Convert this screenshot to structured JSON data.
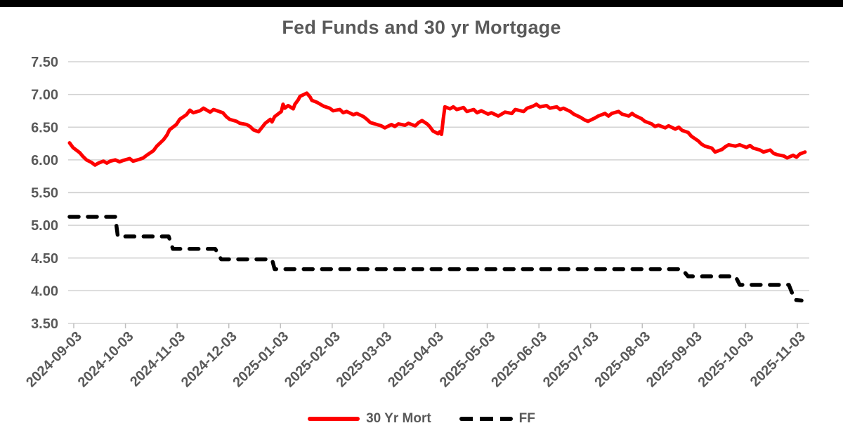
{
  "page": {
    "top_bar_color": "#000000",
    "background_color": "#ffffff"
  },
  "chart": {
    "title": "Fed Funds and 30 yr Mortgage",
    "colors": {
      "mortgage_line": "#fe0000",
      "ff_line": "#000000",
      "gridline": "#d2d2d2",
      "tick_mark": "#bfbfbf",
      "axis_text": "#595959"
    },
    "legend": [
      {
        "label": "30 Yr Mort",
        "style": "solid",
        "color": "#fe0000"
      },
      {
        "label": "FF",
        "style": "dashed",
        "color": "#000000"
      }
    ]
  },
  "chart_data": {
    "type": "line",
    "title": "Fed Funds and 30 yr Mortgage",
    "grid": "horizontal",
    "legend_position": "bottom",
    "ylim": [
      3.5,
      7.5
    ],
    "y_tick_labels": [
      "7.50",
      "7.00",
      "6.50",
      "6.00",
      "5.50",
      "5.00",
      "4.50",
      "4.00",
      "3.50"
    ],
    "x_tick_labels": [
      "2024-09-03",
      "2024-10-03",
      "2024-11-03",
      "2024-12-03",
      "2025-01-03",
      "2025-02-03",
      "2025-03-03",
      "2025-04-03",
      "2025-05-03",
      "2025-06-03",
      "2025-07-03",
      "2025-08-03",
      "2025-09-03",
      "2025-10-03",
      "2025-11-03"
    ],
    "series": [
      {
        "name": "30 Yr Mort",
        "style": "solid",
        "color": "#fe0000",
        "points": [
          [
            "2024-09-03",
            6.26
          ],
          [
            "2024-09-05",
            6.19
          ],
          [
            "2024-09-09",
            6.11
          ],
          [
            "2024-09-11",
            6.05
          ],
          [
            "2024-09-13",
            6.0
          ],
          [
            "2024-09-16",
            5.96
          ],
          [
            "2024-09-18",
            5.92
          ],
          [
            "2024-09-20",
            5.95
          ],
          [
            "2024-09-23",
            5.98
          ],
          [
            "2024-09-25",
            5.95
          ],
          [
            "2024-09-27",
            5.98
          ],
          [
            "2024-09-30",
            6.0
          ],
          [
            "2024-10-02",
            5.97
          ],
          [
            "2024-10-04",
            5.99
          ],
          [
            "2024-10-08",
            6.02
          ],
          [
            "2024-10-10",
            5.98
          ],
          [
            "2024-10-14",
            6.01
          ],
          [
            "2024-10-16",
            6.03
          ],
          [
            "2024-10-18",
            6.07
          ],
          [
            "2024-10-22",
            6.14
          ],
          [
            "2024-10-24",
            6.21
          ],
          [
            "2024-10-28",
            6.31
          ],
          [
            "2024-10-30",
            6.38
          ],
          [
            "2024-11-01",
            6.46
          ],
          [
            "2024-11-05",
            6.54
          ],
          [
            "2024-11-07",
            6.62
          ],
          [
            "2024-11-11",
            6.69
          ],
          [
            "2024-11-13",
            6.76
          ],
          [
            "2024-11-15",
            6.72
          ],
          [
            "2024-11-19",
            6.75
          ],
          [
            "2024-11-21",
            6.79
          ],
          [
            "2024-11-25",
            6.73
          ],
          [
            "2024-11-27",
            6.77
          ],
          [
            "2024-12-02",
            6.72
          ],
          [
            "2024-12-04",
            6.66
          ],
          [
            "2024-12-06",
            6.62
          ],
          [
            "2024-12-10",
            6.59
          ],
          [
            "2024-12-12",
            6.56
          ],
          [
            "2024-12-16",
            6.54
          ],
          [
            "2024-12-18",
            6.51
          ],
          [
            "2024-12-20",
            6.46
          ],
          [
            "2024-12-23",
            6.43
          ],
          [
            "2024-12-27",
            6.56
          ],
          [
            "2024-12-30",
            6.62
          ],
          [
            "2024-12-31",
            6.58
          ],
          [
            "2025-01-02",
            6.66
          ],
          [
            "2025-01-06",
            6.74
          ],
          [
            "2025-01-07",
            6.85
          ],
          [
            "2025-01-08",
            6.79
          ],
          [
            "2025-01-10",
            6.83
          ],
          [
            "2025-01-13",
            6.78
          ],
          [
            "2025-01-14",
            6.85
          ],
          [
            "2025-01-16",
            6.92
          ],
          [
            "2025-01-17",
            6.97
          ],
          [
            "2025-01-21",
            7.02
          ],
          [
            "2025-01-23",
            6.96
          ],
          [
            "2025-01-24",
            6.91
          ],
          [
            "2025-01-27",
            6.88
          ],
          [
            "2025-01-29",
            6.85
          ],
          [
            "2025-01-31",
            6.82
          ],
          [
            "2025-02-04",
            6.79
          ],
          [
            "2025-02-06",
            6.75
          ],
          [
            "2025-02-10",
            6.77
          ],
          [
            "2025-02-12",
            6.72
          ],
          [
            "2025-02-14",
            6.74
          ],
          [
            "2025-02-18",
            6.69
          ],
          [
            "2025-02-20",
            6.71
          ],
          [
            "2025-02-24",
            6.66
          ],
          [
            "2025-02-26",
            6.62
          ],
          [
            "2025-02-28",
            6.57
          ],
          [
            "2025-03-04",
            6.52
          ],
          [
            "2025-03-06",
            6.49
          ],
          [
            "2025-03-10",
            6.54
          ],
          [
            "2025-03-12",
            6.51
          ],
          [
            "2025-03-14",
            6.55
          ],
          [
            "2025-03-18",
            6.53
          ],
          [
            "2025-03-20",
            6.56
          ],
          [
            "2025-03-24",
            6.52
          ],
          [
            "2025-03-26",
            6.57
          ],
          [
            "2025-03-28",
            6.6
          ],
          [
            "2025-03-31",
            6.55
          ],
          [
            "2025-04-02",
            6.51
          ],
          [
            "2025-04-04",
            6.44
          ],
          [
            "2025-04-07",
            6.4
          ],
          [
            "2025-04-08",
            6.43
          ],
          [
            "2025-04-09",
            6.39
          ],
          [
            "2025-04-10",
            6.62
          ],
          [
            "2025-04-11",
            6.81
          ],
          [
            "2025-04-14",
            6.78
          ],
          [
            "2025-04-16",
            6.81
          ],
          [
            "2025-04-18",
            6.77
          ],
          [
            "2025-04-22",
            6.8
          ],
          [
            "2025-04-24",
            6.74
          ],
          [
            "2025-04-28",
            6.77
          ],
          [
            "2025-04-30",
            6.72
          ],
          [
            "2025-05-02",
            6.75
          ],
          [
            "2025-05-06",
            6.7
          ],
          [
            "2025-05-08",
            6.72
          ],
          [
            "2025-05-12",
            6.67
          ],
          [
            "2025-05-14",
            6.7
          ],
          [
            "2025-05-16",
            6.73
          ],
          [
            "2025-05-20",
            6.71
          ],
          [
            "2025-05-22",
            6.77
          ],
          [
            "2025-05-27",
            6.74
          ],
          [
            "2025-05-29",
            6.79
          ],
          [
            "2025-06-02",
            6.82
          ],
          [
            "2025-06-04",
            6.85
          ],
          [
            "2025-06-06",
            6.81
          ],
          [
            "2025-06-10",
            6.83
          ],
          [
            "2025-06-12",
            6.79
          ],
          [
            "2025-06-16",
            6.81
          ],
          [
            "2025-06-18",
            6.77
          ],
          [
            "2025-06-20",
            6.79
          ],
          [
            "2025-06-24",
            6.74
          ],
          [
            "2025-06-26",
            6.7
          ],
          [
            "2025-06-30",
            6.65
          ],
          [
            "2025-07-02",
            6.61
          ],
          [
            "2025-07-04",
            6.59
          ],
          [
            "2025-07-08",
            6.64
          ],
          [
            "2025-07-10",
            6.67
          ],
          [
            "2025-07-14",
            6.71
          ],
          [
            "2025-07-16",
            6.67
          ],
          [
            "2025-07-18",
            6.71
          ],
          [
            "2025-07-22",
            6.74
          ],
          [
            "2025-07-24",
            6.7
          ],
          [
            "2025-07-28",
            6.67
          ],
          [
            "2025-07-30",
            6.71
          ],
          [
            "2025-08-01",
            6.68
          ],
          [
            "2025-08-05",
            6.63
          ],
          [
            "2025-08-07",
            6.59
          ],
          [
            "2025-08-11",
            6.55
          ],
          [
            "2025-08-13",
            6.51
          ],
          [
            "2025-08-15",
            6.53
          ],
          [
            "2025-08-19",
            6.49
          ],
          [
            "2025-08-21",
            6.52
          ],
          [
            "2025-08-25",
            6.47
          ],
          [
            "2025-08-27",
            6.5
          ],
          [
            "2025-08-29",
            6.45
          ],
          [
            "2025-09-02",
            6.42
          ],
          [
            "2025-09-04",
            6.36
          ],
          [
            "2025-09-08",
            6.29
          ],
          [
            "2025-09-10",
            6.24
          ],
          [
            "2025-09-12",
            6.21
          ],
          [
            "2025-09-16",
            6.18
          ],
          [
            "2025-09-18",
            6.12
          ],
          [
            "2025-09-22",
            6.16
          ],
          [
            "2025-09-24",
            6.2
          ],
          [
            "2025-09-26",
            6.23
          ],
          [
            "2025-09-30",
            6.21
          ],
          [
            "2025-10-02",
            6.23
          ],
          [
            "2025-10-06",
            6.19
          ],
          [
            "2025-10-08",
            6.22
          ],
          [
            "2025-10-10",
            6.18
          ],
          [
            "2025-10-14",
            6.15
          ],
          [
            "2025-10-16",
            6.12
          ],
          [
            "2025-10-20",
            6.15
          ],
          [
            "2025-10-22",
            6.1
          ],
          [
            "2025-10-24",
            6.08
          ],
          [
            "2025-10-28",
            6.06
          ],
          [
            "2025-10-30",
            6.03
          ],
          [
            "2025-11-03",
            6.07
          ],
          [
            "2025-11-05",
            6.04
          ],
          [
            "2025-11-07",
            6.09
          ],
          [
            "2025-11-10",
            6.12
          ]
        ]
      },
      {
        "name": "FF",
        "style": "dashed",
        "color": "#000000",
        "points": [
          [
            "2024-09-03",
            5.13
          ],
          [
            "2024-09-30",
            5.13
          ],
          [
            "2024-10-01",
            4.83
          ],
          [
            "2024-10-31",
            4.83
          ],
          [
            "2024-11-03",
            4.64
          ],
          [
            "2024-11-28",
            4.64
          ],
          [
            "2024-12-01",
            4.48
          ],
          [
            "2024-12-31",
            4.48
          ],
          [
            "2025-01-02",
            4.33
          ],
          [
            "2025-08-29",
            4.33
          ],
          [
            "2025-09-02",
            4.22
          ],
          [
            "2025-09-30",
            4.22
          ],
          [
            "2025-10-02",
            4.09
          ],
          [
            "2025-10-31",
            4.09
          ],
          [
            "2025-11-04",
            3.86
          ],
          [
            "2025-11-08",
            3.85
          ]
        ]
      }
    ]
  }
}
